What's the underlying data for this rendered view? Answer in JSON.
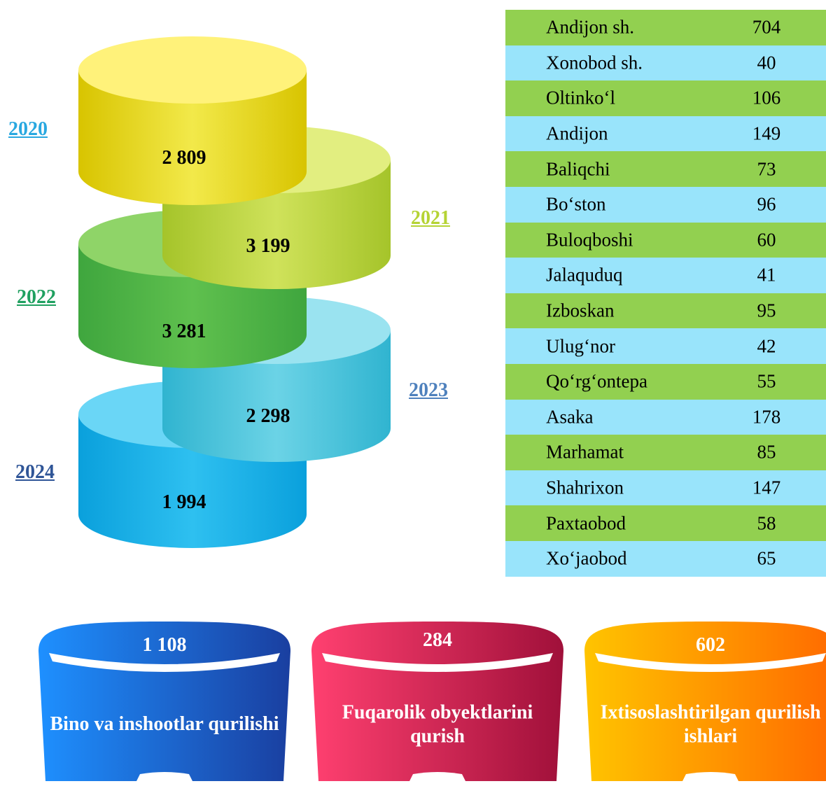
{
  "cylinders": [
    {
      "year": "2020",
      "value": "2 809"
    },
    {
      "year": "2021",
      "value": "3 199"
    },
    {
      "year": "2022",
      "value": "3 281"
    },
    {
      "year": "2023",
      "value": "2 298"
    },
    {
      "year": "2024",
      "value": "1 994"
    }
  ],
  "table": {
    "rows": [
      [
        "Andijon sh.",
        704
      ],
      [
        "Xonobod sh.",
        40
      ],
      [
        "Oltinko‘l",
        106
      ],
      [
        "Andijon",
        149
      ],
      [
        "Baliqchi",
        73
      ],
      [
        "Bo‘ston",
        96
      ],
      [
        "Buloqboshi",
        60
      ],
      [
        "Jalaquduq",
        41
      ],
      [
        "Izboskan",
        95
      ],
      [
        "Ulug‘nor",
        42
      ],
      [
        "Qo‘rg‘ontepa",
        55
      ],
      [
        "Asaka",
        178
      ],
      [
        "Marhamat",
        85
      ],
      [
        "Shahrixon",
        147
      ],
      [
        "Paxtaobod",
        58
      ],
      [
        "Xo‘jaobod",
        65
      ]
    ]
  },
  "cards": [
    {
      "value": "1 108",
      "label": "Bino va inshootlar qurilishi"
    },
    {
      "value": "284",
      "label": "Fuqarolik obyektlarini qurish"
    },
    {
      "value": "602",
      "label": "Ixtisoslashtirilgan qurilish ishlari"
    }
  ]
}
